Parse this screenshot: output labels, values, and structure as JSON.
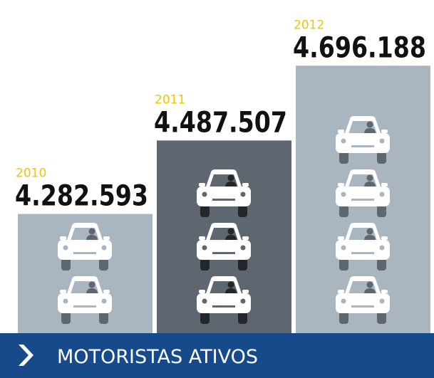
{
  "chart_data": {
    "type": "bar",
    "title": "MOTORISTAS ATIVOS",
    "categories": [
      "2010",
      "2011",
      "2012"
    ],
    "values": [
      4282593,
      4487507,
      4696188
    ],
    "value_labels": [
      "4.282.593",
      "4.487.507",
      "4.696.188"
    ],
    "colors": [
      "#a9b5bf",
      "#5e6670",
      "#a9b5bf"
    ],
    "category_color": "#f2c500",
    "ylim": [
      3950000,
      4800000
    ]
  }
}
